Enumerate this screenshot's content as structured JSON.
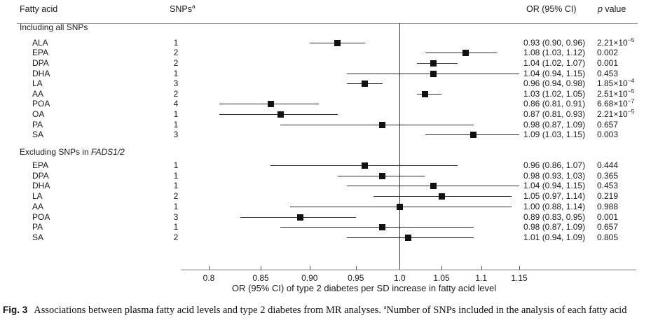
{
  "header": {
    "fatty_acid": "Fatty acid",
    "snps": "SNPs",
    "snps_sup": "a",
    "or_ci": "OR (95% CI)",
    "p_italic": "p",
    "p_rest": " value"
  },
  "axis": {
    "ticks": [
      "0.8",
      "0.85",
      "0.90",
      "0.95",
      "1.0",
      "1.05",
      "1.1",
      "1.15"
    ],
    "label": "OR (95% CI) of type 2 diabetes per SD increase in fatty acid level"
  },
  "caption": {
    "fig_label": "Fig. 3",
    "body": "Associations between plasma fatty acid levels and type 2 diabetes from MR analyses. ",
    "sup": "a",
    "body2": "Number of SNPs included in the analysis of each fatty acid"
  },
  "chart_data": {
    "type": "scatter",
    "subtype": "forest-plot",
    "xlabel": "OR (95% CI) of type 2 diabetes per SD increase in fatty acid level",
    "x_scale": "log",
    "x_ticks": [
      0.8,
      0.85,
      0.9,
      0.95,
      1.0,
      1.05,
      1.1,
      1.15
    ],
    "xlim": [
      0.78,
      1.18
    ],
    "reference_line_x": 1.0,
    "marker": "filled-square",
    "groups": [
      {
        "title": "Including all SNPs",
        "title_italic": "",
        "rows": [
          {
            "fatty_acid": "ALA",
            "snps": "1",
            "or": 0.93,
            "ci_low": 0.9,
            "ci_high": 0.96,
            "or_text": "0.93 (0.90, 0.96)",
            "p_base": "2.21×10",
            "p_sup": "−5"
          },
          {
            "fatty_acid": "EPA",
            "snps": "2",
            "or": 1.08,
            "ci_low": 1.03,
            "ci_high": 1.12,
            "or_text": "1.08 (1.03, 1.12)",
            "p_base": "0.002",
            "p_sup": ""
          },
          {
            "fatty_acid": "DPA",
            "snps": "2",
            "or": 1.04,
            "ci_low": 1.02,
            "ci_high": 1.07,
            "or_text": "1.04 (1.02, 1.07)",
            "p_base": "0.001",
            "p_sup": ""
          },
          {
            "fatty_acid": "DHA",
            "snps": "1",
            "or": 1.04,
            "ci_low": 0.94,
            "ci_high": 1.15,
            "or_text": "1.04 (0.94, 1.15)",
            "p_base": "0.453",
            "p_sup": ""
          },
          {
            "fatty_acid": "LA",
            "snps": "3",
            "or": 0.96,
            "ci_low": 0.94,
            "ci_high": 0.98,
            "or_text": "0.96 (0.94, 0.98)",
            "p_base": "1.85×10",
            "p_sup": "−4"
          },
          {
            "fatty_acid": "AA",
            "snps": "2",
            "or": 1.03,
            "ci_low": 1.02,
            "ci_high": 1.05,
            "or_text": "1.03 (1.02, 1.05)",
            "p_base": "2.51×10",
            "p_sup": "−5"
          },
          {
            "fatty_acid": "POA",
            "snps": "4",
            "or": 0.86,
            "ci_low": 0.81,
            "ci_high": 0.91,
            "or_text": "0.86 (0.81, 0.91)",
            "p_base": "6.68×10",
            "p_sup": "−7"
          },
          {
            "fatty_acid": "OA",
            "snps": "1",
            "or": 0.87,
            "ci_low": 0.81,
            "ci_high": 0.93,
            "or_text": "0.87 (0.81, 0.93)",
            "p_base": "2.21×10",
            "p_sup": "−5"
          },
          {
            "fatty_acid": "PA",
            "snps": "1",
            "or": 0.98,
            "ci_low": 0.87,
            "ci_high": 1.09,
            "or_text": "0.98 (0.87, 1.09)",
            "p_base": "0.657",
            "p_sup": ""
          },
          {
            "fatty_acid": "SA",
            "snps": "3",
            "or": 1.09,
            "ci_low": 1.03,
            "ci_high": 1.15,
            "or_text": "1.09 (1.03, 1.15)",
            "p_base": "0.003",
            "p_sup": ""
          }
        ]
      },
      {
        "title": "Excluding SNPs in ",
        "title_italic": "FADS1/2",
        "rows": [
          {
            "fatty_acid": "EPA",
            "snps": "1",
            "or": 0.96,
            "ci_low": 0.86,
            "ci_high": 1.07,
            "or_text": "0.96 (0.86, 1.07)",
            "p_base": "0.444",
            "p_sup": ""
          },
          {
            "fatty_acid": "DPA",
            "snps": "1",
            "or": 0.98,
            "ci_low": 0.93,
            "ci_high": 1.03,
            "or_text": "0.98 (0.93, 1.03)",
            "p_base": "0.365",
            "p_sup": ""
          },
          {
            "fatty_acid": "DHA",
            "snps": "1",
            "or": 1.04,
            "ci_low": 0.94,
            "ci_high": 1.15,
            "or_text": "1.04 (0.94, 1.15)",
            "p_base": "0.453",
            "p_sup": ""
          },
          {
            "fatty_acid": "LA",
            "snps": "2",
            "or": 1.05,
            "ci_low": 0.97,
            "ci_high": 1.14,
            "or_text": "1.05 (0.97, 1.14)",
            "p_base": "0.219",
            "p_sup": ""
          },
          {
            "fatty_acid": "AA",
            "snps": "1",
            "or": 1.0,
            "ci_low": 0.88,
            "ci_high": 1.14,
            "or_text": "1.00 (0.88, 1.14)",
            "p_base": "0.988",
            "p_sup": ""
          },
          {
            "fatty_acid": "POA",
            "snps": "3",
            "or": 0.89,
            "ci_low": 0.83,
            "ci_high": 0.95,
            "or_text": "0.89 (0.83, 0.95)",
            "p_base": "0.001",
            "p_sup": ""
          },
          {
            "fatty_acid": "PA",
            "snps": "1",
            "or": 0.98,
            "ci_low": 0.87,
            "ci_high": 1.09,
            "or_text": "0.98 (0.87, 1.09)",
            "p_base": "0.657",
            "p_sup": ""
          },
          {
            "fatty_acid": "SA",
            "snps": "2",
            "or": 1.01,
            "ci_low": 0.94,
            "ci_high": 1.09,
            "or_text": "1.01 (0.94, 1.09)",
            "p_base": "0.805",
            "p_sup": ""
          }
        ]
      }
    ]
  }
}
